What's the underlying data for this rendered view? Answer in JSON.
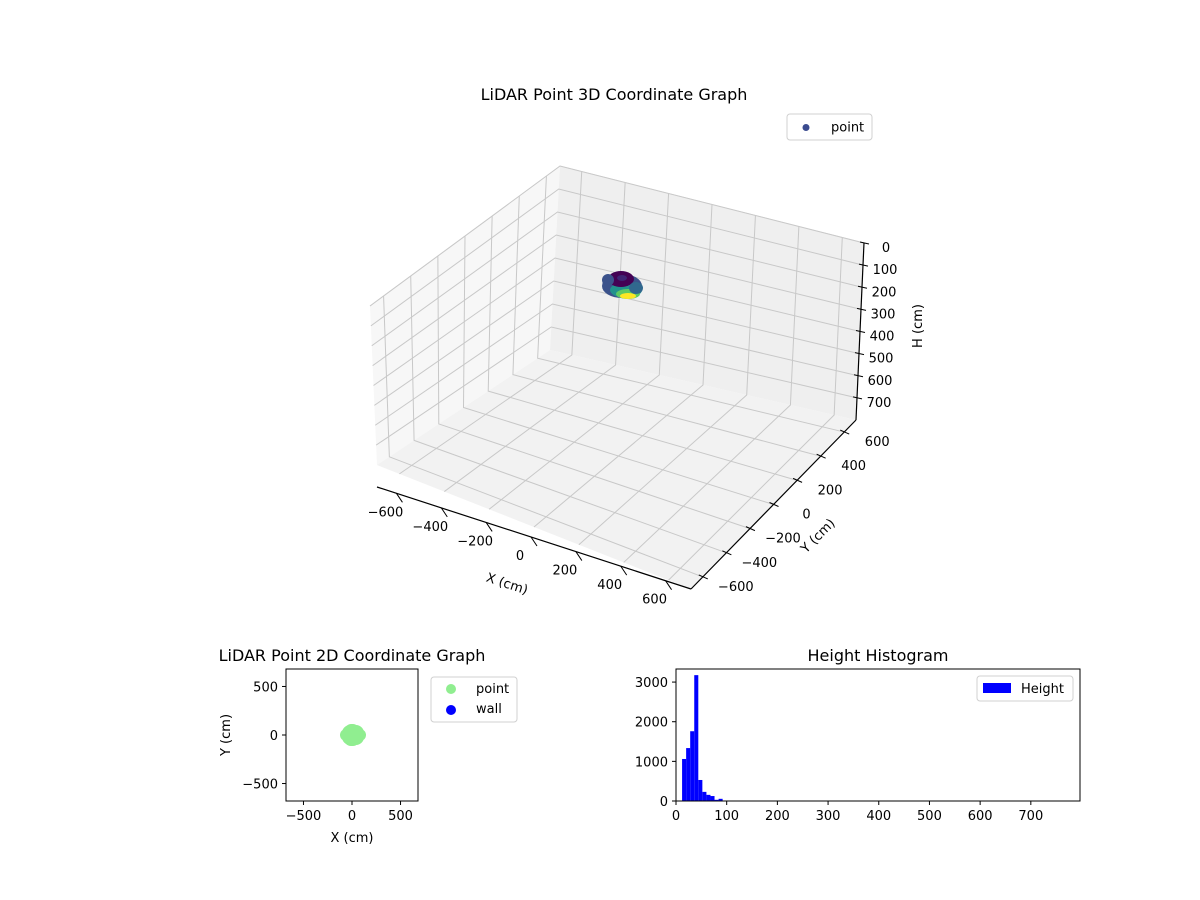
{
  "chart_data": [
    {
      "type": "scatter3d",
      "title": "LiDAR Point 3D Coordinate Graph",
      "xlabel": "X (cm)",
      "ylabel": "Y (cm)",
      "zlabel": "H (cm)",
      "xlim": [
        -700,
        700
      ],
      "ylim": [
        -700,
        700
      ],
      "zlim": [
        800,
        0
      ],
      "x_ticks": [
        "−600",
        "−400",
        "−200",
        "0",
        "200",
        "400",
        "600"
      ],
      "y_ticks": [
        "−600",
        "−400",
        "−200",
        "0",
        "200",
        "400",
        "600"
      ],
      "z_ticks": [
        "0",
        "100",
        "200",
        "300",
        "400",
        "500",
        "600",
        "700"
      ],
      "z_inverted": true,
      "colormap": "viridis",
      "legend": [
        {
          "label": "point",
          "color": "#3b4b8f"
        }
      ],
      "legend_position": "upper right",
      "grid": true,
      "series": [
        {
          "name": "point",
          "description": "cluster of points centered near origin, x/y within about ±100 cm, height about 10-80 cm"
        }
      ]
    },
    {
      "type": "scatter",
      "title": "LiDAR Point 2D Coordinate Graph",
      "xlabel": "X (cm)",
      "ylabel": "Y (cm)",
      "xlim": [
        -680,
        680
      ],
      "ylim": [
        -680,
        680
      ],
      "x_ticks": [
        "−500",
        "0",
        "500"
      ],
      "y_ticks": [
        "−500",
        "0",
        "500"
      ],
      "legend": [
        {
          "label": "point",
          "color": "#90ee90"
        },
        {
          "label": "wall",
          "color": "#0000ff"
        }
      ],
      "legend_position": "outside upper right",
      "grid": false,
      "series": [
        {
          "name": "point",
          "color": "#90ee90",
          "description": "rounded diamond cluster at origin, extent about ±100 cm"
        },
        {
          "name": "wall",
          "color": "#0000ff",
          "points": []
        }
      ]
    },
    {
      "type": "bar",
      "subtype": "histogram",
      "title": "Height Histogram",
      "xlabel": "",
      "ylabel": "",
      "xlim": [
        0,
        797
      ],
      "ylim": [
        0,
        3330
      ],
      "x_ticks": [
        "0",
        "100",
        "200",
        "300",
        "400",
        "500",
        "600",
        "700"
      ],
      "y_ticks": [
        "0",
        "1000",
        "2000",
        "3000"
      ],
      "legend": [
        {
          "label": "Height",
          "color": "#0000ff"
        }
      ],
      "legend_position": "upper right",
      "grid": false,
      "bin_width": 8,
      "categories": [
        "12-20",
        "20-28",
        "28-36",
        "36-44",
        "44-52",
        "52-60",
        "60-68",
        "68-76",
        "76-84",
        "84-92"
      ],
      "bin_starts": [
        12,
        20,
        28,
        36,
        44,
        52,
        60,
        68,
        76,
        84
      ],
      "values": [
        1060,
        1335,
        1760,
        3175,
        530,
        230,
        155,
        125,
        30,
        55
      ],
      "series": [
        {
          "name": "Height",
          "color": "#0000ff"
        }
      ]
    }
  ],
  "figure": {
    "title_3d": "LiDAR Point 3D Coordinate Graph",
    "title_2d": "LiDAR Point 2D Coordinate Graph",
    "title_hist": "Height Histogram"
  }
}
